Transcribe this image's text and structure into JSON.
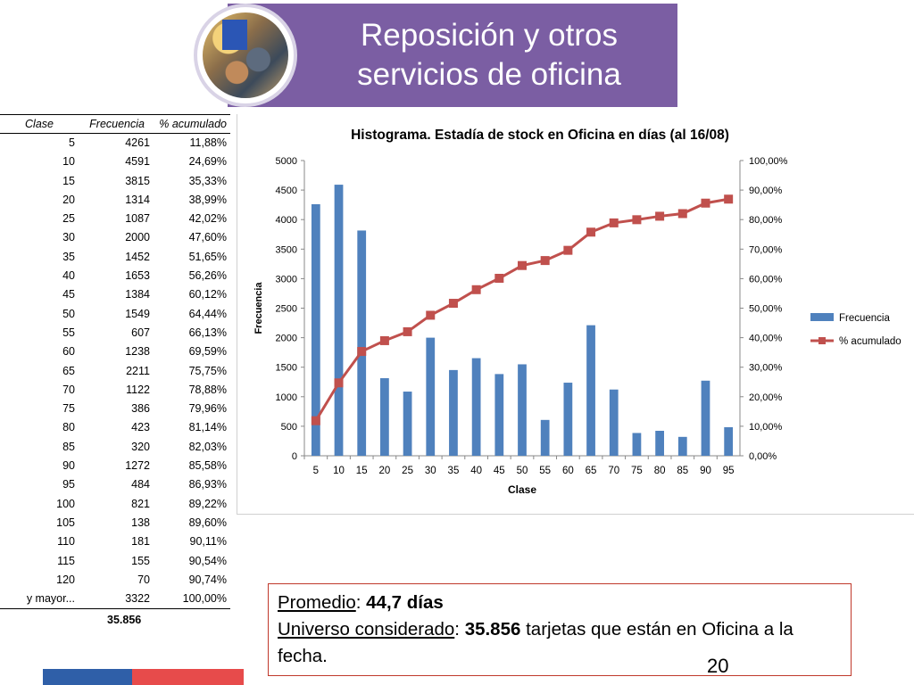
{
  "header": {
    "title_line1": "Reposición y otros",
    "title_line2": "servicios de oficina",
    "banner_color": "#7b5ea3"
  },
  "table": {
    "headers": [
      "Clase",
      "Frecuencia",
      "% acumulado"
    ],
    "rows": [
      [
        "5",
        "4261",
        "11,88%"
      ],
      [
        "10",
        "4591",
        "24,69%"
      ],
      [
        "15",
        "3815",
        "35,33%"
      ],
      [
        "20",
        "1314",
        "38,99%"
      ],
      [
        "25",
        "1087",
        "42,02%"
      ],
      [
        "30",
        "2000",
        "47,60%"
      ],
      [
        "35",
        "1452",
        "51,65%"
      ],
      [
        "40",
        "1653",
        "56,26%"
      ],
      [
        "45",
        "1384",
        "60,12%"
      ],
      [
        "50",
        "1549",
        "64,44%"
      ],
      [
        "55",
        "607",
        "66,13%"
      ],
      [
        "60",
        "1238",
        "69,59%"
      ],
      [
        "65",
        "2211",
        "75,75%"
      ],
      [
        "70",
        "1122",
        "78,88%"
      ],
      [
        "75",
        "386",
        "79,96%"
      ],
      [
        "80",
        "423",
        "81,14%"
      ],
      [
        "85",
        "320",
        "82,03%"
      ],
      [
        "90",
        "1272",
        "85,58%"
      ],
      [
        "95",
        "484",
        "86,93%"
      ],
      [
        "100",
        "821",
        "89,22%"
      ],
      [
        "105",
        "138",
        "89,60%"
      ],
      [
        "110",
        "181",
        "90,11%"
      ],
      [
        "115",
        "155",
        "90,54%"
      ],
      [
        "120",
        "70",
        "90,74%"
      ],
      [
        "y mayor...",
        "3322",
        "100,00%"
      ]
    ],
    "total": "35.856"
  },
  "chart_data": {
    "type": "bar",
    "title": "Histograma. Estadía de stock en Oficina en días (al 16/08)",
    "xlabel": "Clase",
    "ylabel": "Frecuencia",
    "categories": [
      "5",
      "10",
      "15",
      "20",
      "25",
      "30",
      "35",
      "40",
      "45",
      "50",
      "55",
      "60",
      "65",
      "70",
      "75",
      "80",
      "85",
      "90",
      "95"
    ],
    "series": [
      {
        "name": "Frecuencia",
        "kind": "bar",
        "color": "#4f81bd",
        "axis": "left",
        "values": [
          4261,
          4591,
          3815,
          1314,
          1087,
          2000,
          1452,
          1653,
          1384,
          1549,
          607,
          1238,
          2211,
          1122,
          386,
          423,
          320,
          1272,
          484
        ]
      },
      {
        "name": "% acumulado",
        "kind": "line",
        "color": "#c0504d",
        "axis": "right",
        "values": [
          11.88,
          24.69,
          35.33,
          38.99,
          42.02,
          47.6,
          51.65,
          56.26,
          60.12,
          64.44,
          66.13,
          69.59,
          75.75,
          78.88,
          79.96,
          81.14,
          82.03,
          85.58,
          86.93
        ]
      }
    ],
    "ylim": [
      0,
      5000
    ],
    "y_ticks": [
      "0",
      "500",
      "1000",
      "1500",
      "2000",
      "2500",
      "3000",
      "3500",
      "4000",
      "4500",
      "5000"
    ],
    "y2lim": [
      0,
      100
    ],
    "y2_ticks": [
      "0,00%",
      "10,00%",
      "20,00%",
      "30,00%",
      "40,00%",
      "50,00%",
      "60,00%",
      "70,00%",
      "80,00%",
      "90,00%",
      "100,00%"
    ],
    "legend_position": "right",
    "grid": false
  },
  "note": {
    "promedio_label": "Promedio",
    "promedio_value": "44,7 días",
    "universo_label": "Universo considerado",
    "universo_value": "35.856",
    "universo_text": "tarjetas que están en Oficina a la fecha."
  },
  "page_number": "20"
}
